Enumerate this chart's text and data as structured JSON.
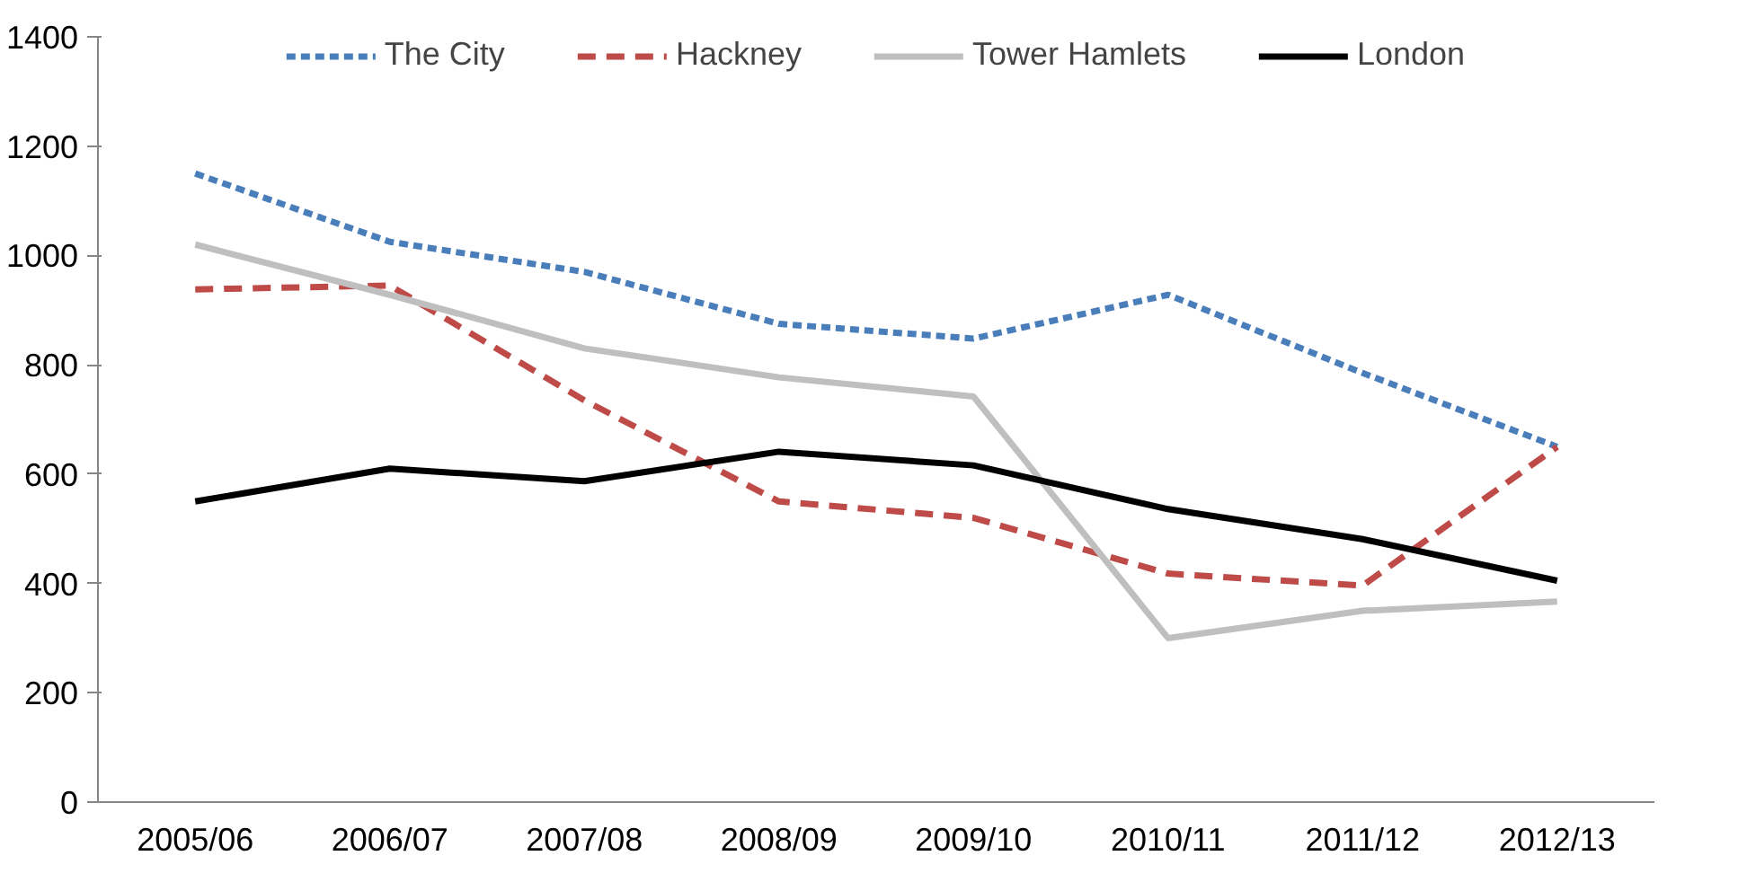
{
  "chart_data": {
    "type": "line",
    "categories": [
      "2005/06",
      "2006/07",
      "2007/08",
      "2008/09",
      "2009/10",
      "2010/11",
      "2011/12",
      "2012/13"
    ],
    "series": [
      {
        "name": "The City",
        "color": "#4a7ebb",
        "line_style": "dotted",
        "values": [
          1150,
          1025,
          970,
          875,
          848,
          928,
          785,
          650
        ]
      },
      {
        "name": "Hackney",
        "color": "#be4b48",
        "line_style": "dashed",
        "values": [
          938,
          945,
          735,
          550,
          520,
          418,
          396,
          650
        ]
      },
      {
        "name": "Tower Hamlets",
        "color": "#bfbfbf",
        "line_style": "solid",
        "values": [
          1020,
          928,
          830,
          777,
          742,
          300,
          350,
          367
        ]
      },
      {
        "name": "London",
        "color": "#000000",
        "line_style": "solid",
        "values": [
          550,
          610,
          587,
          641,
          616,
          536,
          481,
          405
        ]
      }
    ],
    "ylim": [
      0,
      1400
    ],
    "yticks": [
      0,
      200,
      400,
      600,
      800,
      1000,
      1200,
      1400
    ],
    "grid": false,
    "legend": "top",
    "marker": "none"
  }
}
